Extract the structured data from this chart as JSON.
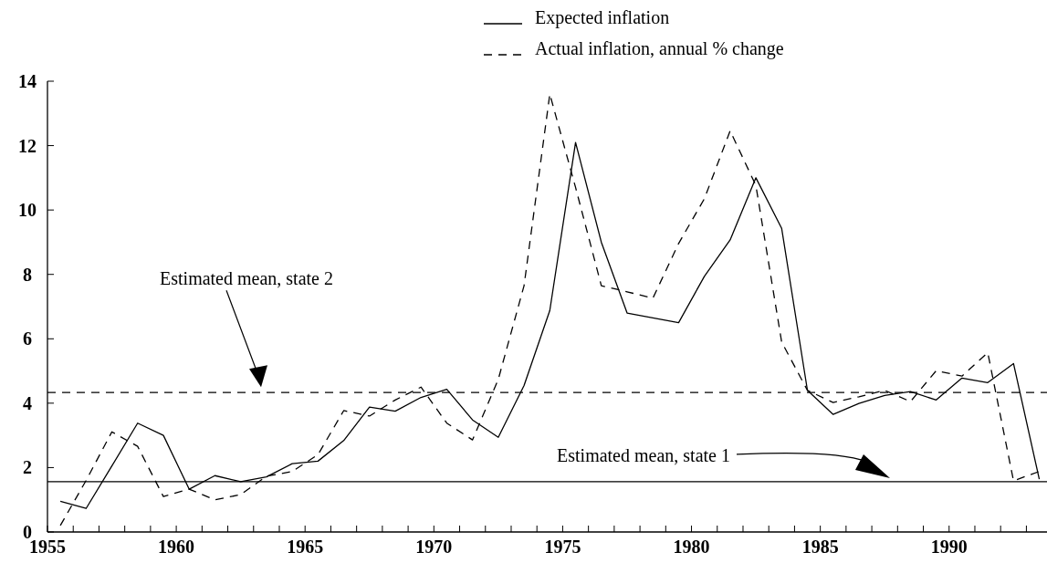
{
  "chart_data": {
    "type": "line",
    "x": [
      1955.5,
      1956.5,
      1957.5,
      1958.5,
      1959.5,
      1960.5,
      1961.5,
      1962.5,
      1963.5,
      1964.5,
      1965.5,
      1966.5,
      1967.5,
      1968.5,
      1969.5,
      1970.5,
      1971.5,
      1972.5,
      1973.5,
      1974.5,
      1975.5,
      1976.5,
      1977.5,
      1978.5,
      1979.5,
      1980.5,
      1981.5,
      1982.5,
      1983.5,
      1984.5,
      1985.5,
      1986.5,
      1987.5,
      1988.5,
      1989.5,
      1990.5,
      1991.5,
      1992.5,
      1993.5
    ],
    "series": [
      {
        "name": "Expected inflation",
        "color": "#000000",
        "line_style": "solid",
        "values": [
          0.95,
          0.73,
          2.05,
          3.38,
          3.0,
          1.33,
          1.75,
          1.56,
          1.71,
          2.12,
          2.2,
          2.84,
          3.88,
          3.75,
          4.18,
          4.43,
          3.48,
          2.94,
          4.55,
          6.88,
          12.1,
          9.0,
          6.8,
          6.65,
          6.5,
          7.94,
          9.07,
          11.0,
          9.43,
          4.4,
          3.65,
          3.99,
          4.24,
          4.36,
          4.1,
          4.78,
          4.64,
          5.23,
          1.64
        ]
      },
      {
        "name": "Actual inflation, annual % change",
        "color": "#000000",
        "line_style": "dashed",
        "values": [
          0.2,
          1.6,
          3.11,
          2.66,
          1.1,
          1.33,
          1.0,
          1.16,
          1.73,
          1.88,
          2.4,
          3.77,
          3.6,
          4.1,
          4.5,
          3.38,
          2.86,
          4.74,
          7.65,
          13.6,
          10.7,
          7.65,
          7.46,
          7.26,
          8.96,
          10.35,
          12.46,
          10.76,
          5.9,
          4.4,
          4.02,
          4.2,
          4.4,
          4.05,
          5.01,
          4.84,
          5.57,
          1.59,
          1.88
        ]
      }
    ],
    "xlim": [
      1955,
      1993.8
    ],
    "xticks": [
      1955,
      {
        "value": 1956,
        "label": null
      },
      {
        "value": 1957,
        "label": null
      },
      {
        "value": 1958,
        "label": null
      },
      {
        "value": 1959,
        "label": null
      },
      1960,
      {
        "value": 1961,
        "label": null
      },
      {
        "value": 1962,
        "label": null
      },
      {
        "value": 1963,
        "label": null
      },
      {
        "value": 1964,
        "label": null
      },
      1965,
      {
        "value": 1966,
        "label": null
      },
      {
        "value": 1967,
        "label": null
      },
      {
        "value": 1968,
        "label": null
      },
      {
        "value": 1969,
        "label": null
      },
      1970,
      {
        "value": 1971,
        "label": null
      },
      {
        "value": 1972,
        "label": null
      },
      {
        "value": 1973,
        "label": null
      },
      {
        "value": 1974,
        "label": null
      },
      1975,
      {
        "value": 1976,
        "label": null
      },
      {
        "value": 1977,
        "label": null
      },
      {
        "value": 1978,
        "label": null
      },
      {
        "value": 1979,
        "label": null
      },
      1980,
      {
        "value": 1981,
        "label": null
      },
      {
        "value": 1982,
        "label": null
      },
      {
        "value": 1983,
        "label": null
      },
      {
        "value": 1984,
        "label": null
      },
      1985,
      {
        "value": 1986,
        "label": null
      },
      {
        "value": 1987,
        "label": null
      },
      {
        "value": 1988,
        "label": null
      },
      {
        "value": 1989,
        "label": null
      },
      1990,
      {
        "value": 1991,
        "label": null
      },
      {
        "value": 1992,
        "label": null
      },
      {
        "value": 1993,
        "label": null
      }
    ],
    "ylim": [
      0,
      14
    ],
    "yticks": [
      0,
      2,
      4,
      6,
      8,
      10,
      12,
      14
    ],
    "ref_lines": [
      {
        "axis": "y",
        "value": 4.33,
        "line_style": "dashed",
        "color": "#000000"
      },
      {
        "axis": "y",
        "value": 1.56,
        "line_style": "solid",
        "color": "#000000"
      }
    ],
    "annotations": [
      "Estimated mean, state 2",
      "Estimated mean, state 1"
    ],
    "legend": "top right",
    "marker": "none",
    "grid": false
  }
}
